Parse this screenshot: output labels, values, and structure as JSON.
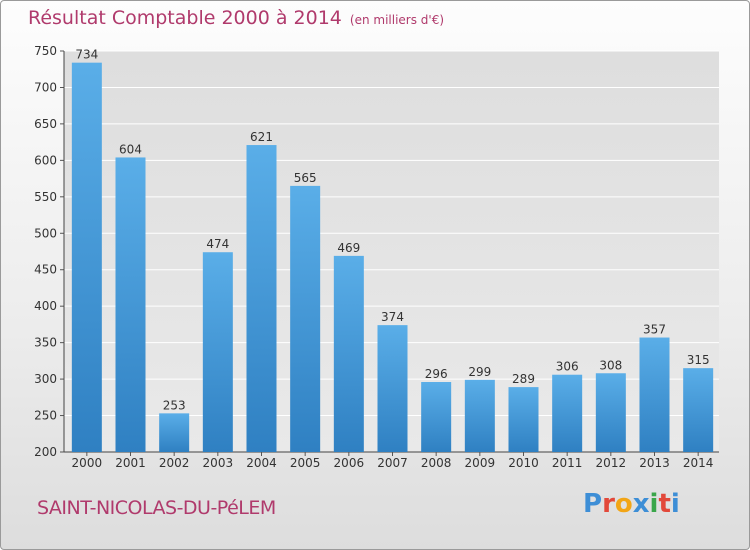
{
  "header": {
    "title": "Résultat Comptable 2000 à 2014",
    "subtitle": "(en milliers d'€)"
  },
  "footer": {
    "city": "SAINT-NICOLAS-DU-PéLEM",
    "brand": "Proxiti"
  },
  "colors": {
    "bar": "#4fa3e0",
    "bar_dark": "#2d7fc1",
    "title": "#b03a6c"
  },
  "chart_data": {
    "type": "bar",
    "title": "Résultat Comptable 2000 à 2014",
    "subtitle": "(en milliers d'€)",
    "xlabel": "",
    "ylabel": "",
    "categories": [
      "2000",
      "2001",
      "2002",
      "2003",
      "2004",
      "2005",
      "2006",
      "2007",
      "2008",
      "2009",
      "2010",
      "2011",
      "2012",
      "2013",
      "2014"
    ],
    "values": [
      734,
      604,
      253,
      474,
      621,
      565,
      469,
      374,
      296,
      299,
      289,
      306,
      308,
      357,
      315
    ],
    "ylim": [
      200,
      750
    ],
    "yticks": [
      200,
      250,
      300,
      350,
      400,
      450,
      500,
      550,
      600,
      650,
      700,
      750
    ],
    "grid": true
  }
}
